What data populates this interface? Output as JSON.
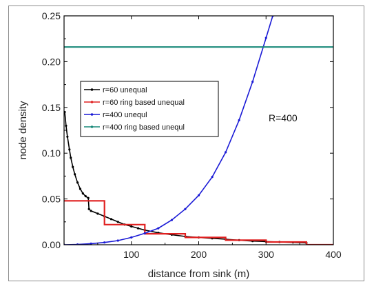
{
  "chart_data": {
    "type": "line",
    "xlabel": "distance from sink (m)",
    "ylabel": "node density",
    "xlim": [
      0,
      400
    ],
    "ylim": [
      0,
      0.25
    ],
    "x_ticks": [
      100,
      200,
      300,
      400
    ],
    "x_tick_labels": [
      "100",
      "200",
      "300",
      "400"
    ],
    "y_ticks": [
      0.0,
      0.05,
      0.1,
      0.15,
      0.2,
      0.25
    ],
    "y_tick_labels": [
      "0.00",
      "0.05",
      "0.10",
      "0.15",
      "0.20",
      "0.25"
    ],
    "grid": false,
    "legend_placement": "upper-left",
    "annotation": "R=400",
    "series": [
      {
        "name": "r=60 unequal",
        "kind": "line-markers",
        "color": "#000000",
        "x": [
          1,
          3,
          5,
          8,
          10,
          13,
          16,
          20,
          24,
          28,
          32,
          36,
          37,
          40,
          50,
          60,
          70,
          80,
          90,
          100,
          110,
          120,
          140,
          160,
          180,
          200,
          220,
          240,
          260,
          280,
          300,
          320,
          340,
          360
        ],
        "y": [
          0.145,
          0.13,
          0.118,
          0.104,
          0.095,
          0.085,
          0.077,
          0.068,
          0.061,
          0.056,
          0.053,
          0.051,
          0.039,
          0.037,
          0.034,
          0.031,
          0.028,
          0.025,
          0.022,
          0.02,
          0.018,
          0.016,
          0.013,
          0.011,
          0.009,
          0.008,
          0.007,
          0.006,
          0.005,
          0.004,
          0.0035,
          0.003,
          0.0025,
          0.002
        ]
      },
      {
        "name": "r=60 ring based unequal",
        "kind": "step",
        "color": "#e02020",
        "x": [
          0,
          60,
          60,
          120,
          120,
          180,
          180,
          240,
          240,
          300,
          300,
          360,
          360,
          400
        ],
        "y": [
          0.048,
          0.048,
          0.022,
          0.022,
          0.012,
          0.012,
          0.008,
          0.008,
          0.005,
          0.005,
          0.003,
          0.003,
          0.0,
          0.0
        ]
      },
      {
        "name": "r=400 unequl",
        "kind": "line-markers",
        "color": "#1a1ad6",
        "x": [
          0,
          20,
          40,
          60,
          80,
          100,
          120,
          140,
          160,
          180,
          200,
          220,
          240,
          260,
          280,
          300,
          310
        ],
        "y": [
          0.0,
          0.0003,
          0.0012,
          0.0025,
          0.0045,
          0.008,
          0.0125,
          0.018,
          0.027,
          0.039,
          0.054,
          0.074,
          0.101,
          0.136,
          0.178,
          0.226,
          0.25
        ]
      },
      {
        "name": "r=400 ring based unequl",
        "kind": "line",
        "color": "#1a8a7a",
        "x": [
          0,
          400
        ],
        "y": [
          0.216,
          0.216
        ]
      }
    ]
  }
}
